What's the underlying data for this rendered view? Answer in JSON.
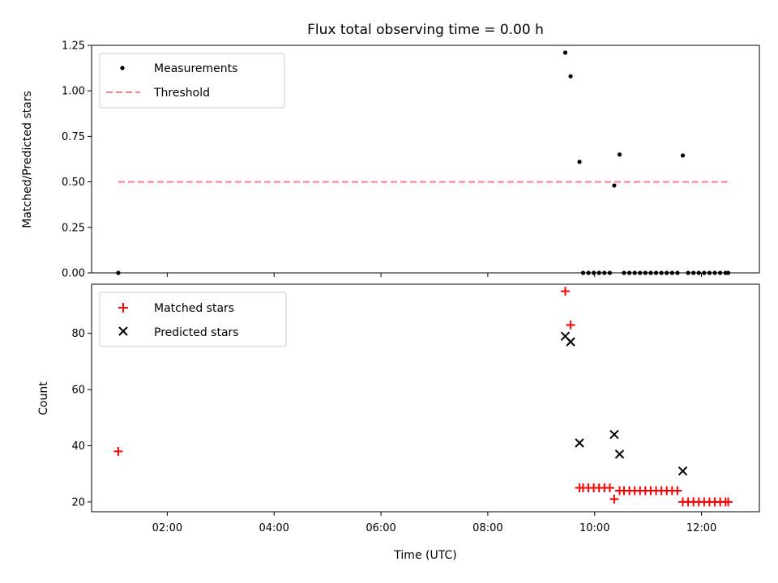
{
  "chart_data": {
    "title": "Flux total observing time = 0.00 h",
    "xlabel": "Time (UTC)",
    "x_ticks": [
      "02:00",
      "04:00",
      "06:00",
      "08:00",
      "10:00",
      "12:00"
    ],
    "xlim": [
      "00:35",
      "13:05"
    ],
    "threshold_x": [
      "01:05",
      "12:30"
    ],
    "colors": {
      "matched": "#ff0000",
      "predicted": "#000000",
      "threshold": "#ff8080",
      "measurement": "#000000"
    },
    "panels": [
      {
        "id": "ratio",
        "type": "scatter",
        "ylabel": "Matched/Predicted stars",
        "ylim": [
          0,
          1.25
        ],
        "y_ticks": [
          "0.00",
          "0.25",
          "0.50",
          "0.75",
          "1.00",
          "1.25"
        ],
        "legend": {
          "placement": "top-left",
          "entries": [
            "Measurements",
            "Threshold"
          ]
        },
        "threshold": 0.5,
        "series": [
          {
            "name": "Measurements",
            "points": [
              [
                "01:05",
                0
              ],
              [
                "09:27",
                1.21
              ],
              [
                "09:33",
                1.08
              ],
              [
                "09:43",
                0.61
              ],
              [
                "10:22",
                0.48
              ],
              [
                "10:28",
                0.65
              ],
              [
                "11:39",
                0.645
              ],
              [
                "09:47",
                0
              ],
              [
                "09:53",
                0
              ],
              [
                "09:59",
                0
              ],
              [
                "10:05",
                0
              ],
              [
                "10:11",
                0
              ],
              [
                "10:17",
                0
              ],
              [
                "10:33",
                0
              ],
              [
                "10:39",
                0
              ],
              [
                "10:45",
                0
              ],
              [
                "10:51",
                0
              ],
              [
                "10:57",
                0
              ],
              [
                "11:03",
                0
              ],
              [
                "11:09",
                0
              ],
              [
                "11:15",
                0
              ],
              [
                "11:21",
                0
              ],
              [
                "11:27",
                0
              ],
              [
                "11:33",
                0
              ],
              [
                "11:45",
                0
              ],
              [
                "11:51",
                0
              ],
              [
                "11:57",
                0
              ],
              [
                "12:03",
                0
              ],
              [
                "12:09",
                0
              ],
              [
                "12:15",
                0
              ],
              [
                "12:21",
                0
              ],
              [
                "12:27",
                0
              ],
              [
                "12:30",
                0
              ]
            ]
          }
        ]
      },
      {
        "id": "counts",
        "type": "scatter",
        "ylabel": "Count",
        "ylim": [
          16.5,
          97.5
        ],
        "y_ticks": [
          "20",
          "40",
          "60",
          "80"
        ],
        "legend": {
          "placement": "top-left",
          "entries": [
            "Matched stars",
            "Predicted stars"
          ]
        },
        "series": [
          {
            "name": "Matched stars",
            "marker": "plus",
            "points": [
              [
                "01:05",
                38
              ],
              [
                "09:27",
                95
              ],
              [
                "09:33",
                83
              ],
              [
                "09:43",
                25
              ],
              [
                "09:47",
                25
              ],
              [
                "09:53",
                25
              ],
              [
                "09:59",
                25
              ],
              [
                "10:05",
                25
              ],
              [
                "10:11",
                25
              ],
              [
                "10:17",
                25
              ],
              [
                "10:22",
                21
              ],
              [
                "10:28",
                24
              ],
              [
                "10:33",
                24
              ],
              [
                "10:39",
                24
              ],
              [
                "10:45",
                24
              ],
              [
                "10:51",
                24
              ],
              [
                "10:57",
                24
              ],
              [
                "11:03",
                24
              ],
              [
                "11:09",
                24
              ],
              [
                "11:15",
                24
              ],
              [
                "11:21",
                24
              ],
              [
                "11:27",
                24
              ],
              [
                "11:33",
                24
              ],
              [
                "11:39",
                20
              ],
              [
                "11:45",
                20
              ],
              [
                "11:51",
                20
              ],
              [
                "11:57",
                20
              ],
              [
                "12:03",
                20
              ],
              [
                "12:09",
                20
              ],
              [
                "12:15",
                20
              ],
              [
                "12:21",
                20
              ],
              [
                "12:27",
                20
              ],
              [
                "12:30",
                20
              ]
            ]
          },
          {
            "name": "Predicted stars",
            "marker": "x",
            "points": [
              [
                "09:27",
                79
              ],
              [
                "09:33",
                77
              ],
              [
                "09:43",
                41
              ],
              [
                "10:22",
                44
              ],
              [
                "10:28",
                37
              ],
              [
                "11:39",
                31
              ]
            ]
          }
        ]
      }
    ]
  }
}
